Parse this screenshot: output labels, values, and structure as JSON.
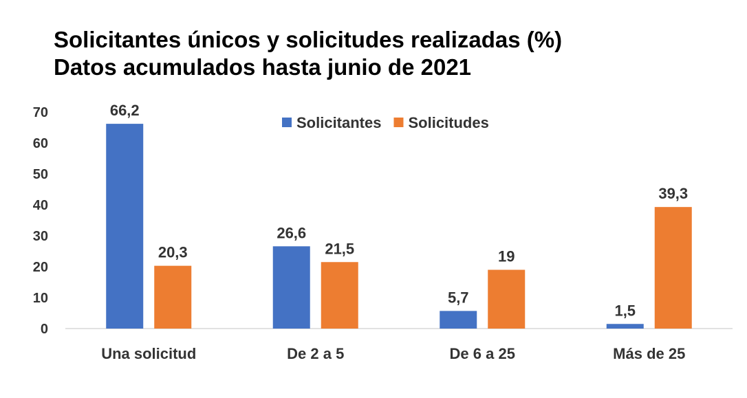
{
  "chart_data": {
    "type": "bar",
    "title": "Solicitantes únicos y solicitudes realizadas (%)",
    "subtitle": "Datos acumulados hasta junio de 2021",
    "categories": [
      "Una solicitud",
      "De 2 a 5",
      "De 6 a 25",
      "Más de 25"
    ],
    "series": [
      {
        "name": "Solicitantes",
        "values": [
          66.2,
          26.6,
          5.7,
          1.5
        ],
        "labels": [
          "66,2",
          "26,6",
          "5,7",
          "1,5"
        ],
        "color": "#4472C4"
      },
      {
        "name": "Solicitudes",
        "values": [
          20.3,
          21.5,
          19,
          39.3
        ],
        "labels": [
          "20,3",
          "21,5",
          "19",
          "39,3"
        ],
        "color": "#ED7D31"
      }
    ],
    "ylim": [
      0,
      70
    ],
    "yticks": [
      "0",
      "10",
      "20",
      "30",
      "40",
      "50",
      "60",
      "70"
    ],
    "grid": false,
    "legend": "top-center"
  }
}
